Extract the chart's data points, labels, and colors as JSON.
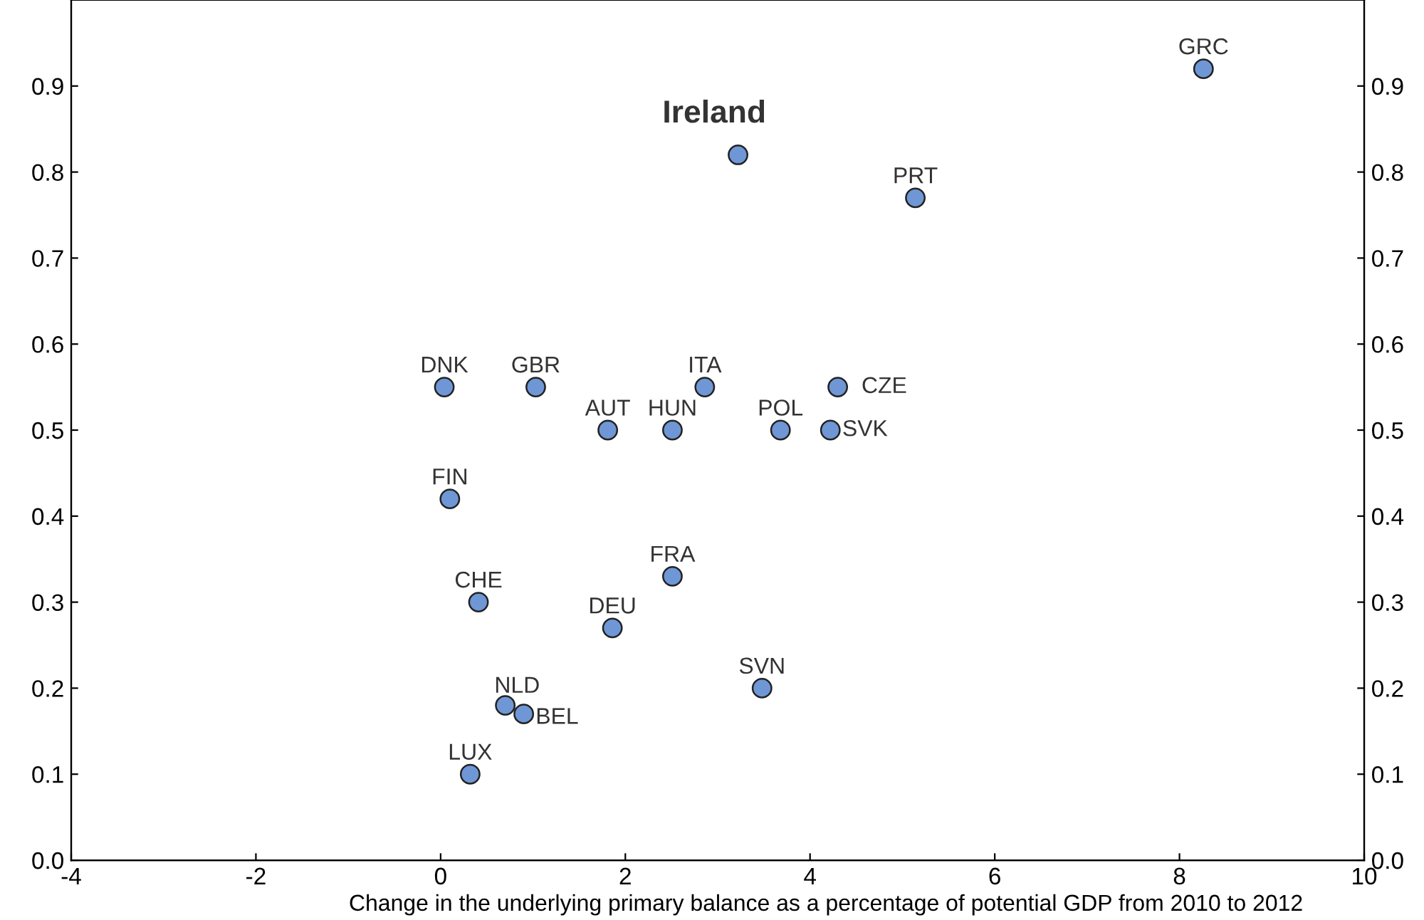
{
  "chart_data": {
    "type": "scatter",
    "xlabel": "Change in the underlying primary balance as a percentage of potential GDP from 2010 to 2012",
    "x": [
      8.26,
      3.22,
      5.14,
      0.04,
      1.03,
      2.86,
      4.3,
      1.81,
      2.51,
      3.68,
      4.22,
      0.1,
      2.51,
      0.41,
      1.86,
      3.48,
      0.7,
      0.9,
      0.32
    ],
    "series": [
      {
        "color": "#6f97d6",
        "values": [
          0.92,
          0.82,
          0.77,
          0.55,
          0.55,
          0.55,
          0.55,
          0.5,
          0.5,
          0.5,
          0.5,
          0.42,
          0.33,
          0.3,
          0.27,
          0.2,
          0.18,
          0.17,
          0.1
        ]
      }
    ],
    "annotations": [
      {
        "text": "GRC",
        "x": 8.26,
        "y": 0.92
      },
      {
        "text": "Ireland",
        "x": 3.22,
        "y": 0.82
      },
      {
        "text": "PRT",
        "x": 5.14,
        "y": 0.77
      },
      {
        "text": "DNK",
        "x": 0.04,
        "y": 0.55
      },
      {
        "text": "GBR",
        "x": 1.03,
        "y": 0.55
      },
      {
        "text": "ITA",
        "x": 2.86,
        "y": 0.55
      },
      {
        "text": "CZE",
        "x": 4.3,
        "y": 0.55
      },
      {
        "text": "AUT",
        "x": 1.81,
        "y": 0.5
      },
      {
        "text": "HUN",
        "x": 2.51,
        "y": 0.5
      },
      {
        "text": "POL",
        "x": 3.68,
        "y": 0.5
      },
      {
        "text": "SVK",
        "x": 4.22,
        "y": 0.5
      },
      {
        "text": "FIN",
        "x": 0.1,
        "y": 0.42
      },
      {
        "text": "FRA",
        "x": 2.51,
        "y": 0.33
      },
      {
        "text": "CHE",
        "x": 0.41,
        "y": 0.3
      },
      {
        "text": "DEU",
        "x": 1.86,
        "y": 0.27
      },
      {
        "text": "SVN",
        "x": 3.48,
        "y": 0.2
      },
      {
        "text": "NLD",
        "x": 0.7,
        "y": 0.18
      },
      {
        "text": "BEL",
        "x": 0.9,
        "y": 0.17
      },
      {
        "text": "LUX",
        "x": 0.32,
        "y": 0.1
      }
    ],
    "xlim": [
      -4,
      10
    ],
    "xticks": [
      -4,
      -2,
      0,
      2,
      4,
      6,
      8,
      10
    ],
    "ylim": [
      0,
      1
    ],
    "yticks": [
      {
        "value": 0,
        "label": "0.0"
      },
      0.1,
      0.2,
      0.3,
      0.4,
      0.5,
      0.6,
      0.7,
      0.8,
      0.9
    ],
    "y2lim": [
      0,
      1
    ],
    "y2ticks": [
      {
        "value": 0,
        "label": "0.0"
      },
      0.1,
      0.2,
      0.3,
      0.4,
      0.5,
      0.6,
      0.7,
      0.8,
      0.9
    ],
    "marker": "circle",
    "grid": false,
    "legend": false
  }
}
